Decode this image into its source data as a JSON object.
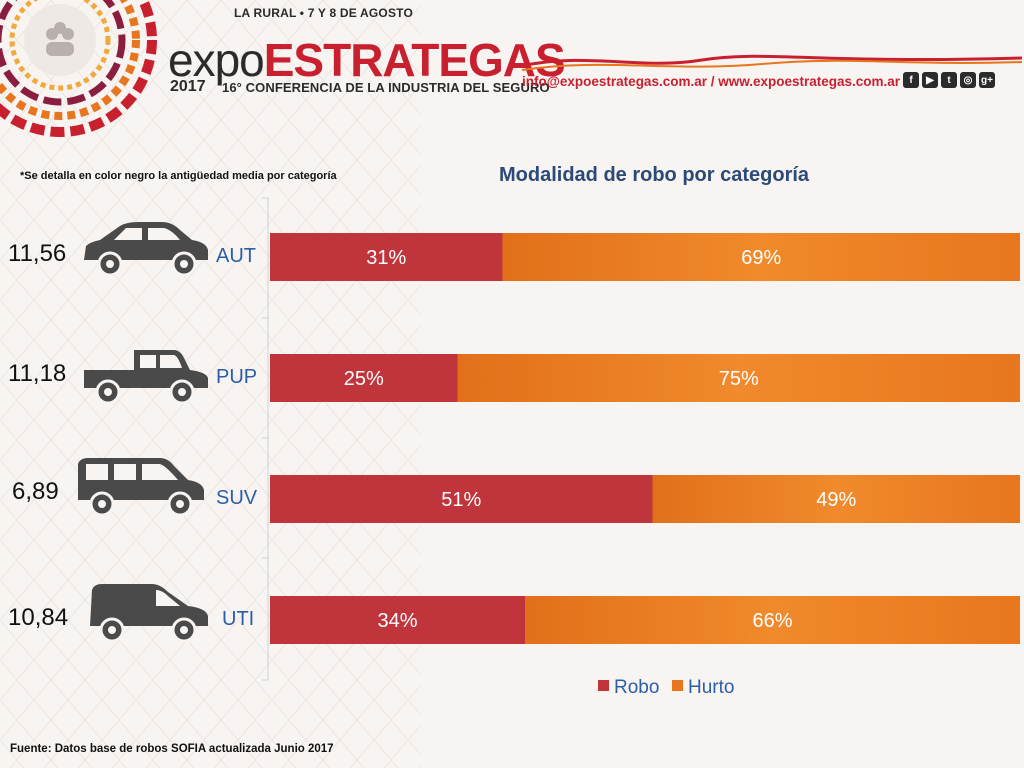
{
  "header": {
    "event_line": "LA RURAL • 7 Y 8 DE AGOSTO",
    "logo_expo": "expo",
    "logo_estrategas": "ESTRATEGAS",
    "year": "2017",
    "subtitle": "16° CONFERENCIA DE LA INDUSTRIA DEL SEGURO",
    "contact": "info@expoestrategas.com.ar / www.expoestrategas.com.ar",
    "socials": [
      {
        "icon": "facebook-icon",
        "glyph": "f"
      },
      {
        "icon": "youtube-icon",
        "glyph": "▶"
      },
      {
        "icon": "twitter-icon",
        "glyph": "t"
      },
      {
        "icon": "instagram-icon",
        "glyph": "◎"
      },
      {
        "icon": "google-plus-icon",
        "glyph": "g+"
      }
    ]
  },
  "note": "*Se detalla en color negro la antigüedad media por categoría",
  "source": "Fuente: Datos base de robos SOFIA actualizada Junio 2017",
  "categories_meta": [
    {
      "code": "AUT",
      "age": "11,56",
      "vehicle_icon": "sedan-icon"
    },
    {
      "code": "PUP",
      "age": "11,18",
      "vehicle_icon": "pickup-icon"
    },
    {
      "code": "SUV",
      "age": "6,89",
      "vehicle_icon": "suv-icon"
    },
    {
      "code": "UTI",
      "age": "10,84",
      "vehicle_icon": "van-icon"
    }
  ],
  "colors": {
    "robo": "#c0353b",
    "hurto": "#e8761e",
    "title": "#2b4a78",
    "category": "#2b5ea7"
  },
  "chart_data": {
    "type": "bar",
    "orientation": "horizontal",
    "stacked": true,
    "title": "Modalidad de robo por categoría",
    "categories": [
      "AUT",
      "PUP",
      "SUV",
      "UTI"
    ],
    "series": [
      {
        "name": "Robo",
        "values": [
          31,
          25,
          51,
          34
        ]
      },
      {
        "name": "Hurto",
        "values": [
          69,
          75,
          49,
          66
        ]
      }
    ],
    "value_labels": [
      [
        "31%",
        "25%",
        "51%",
        "34%"
      ],
      [
        "69%",
        "75%",
        "49%",
        "66%"
      ]
    ],
    "xlim": [
      0,
      100
    ],
    "legend": "bottom"
  }
}
